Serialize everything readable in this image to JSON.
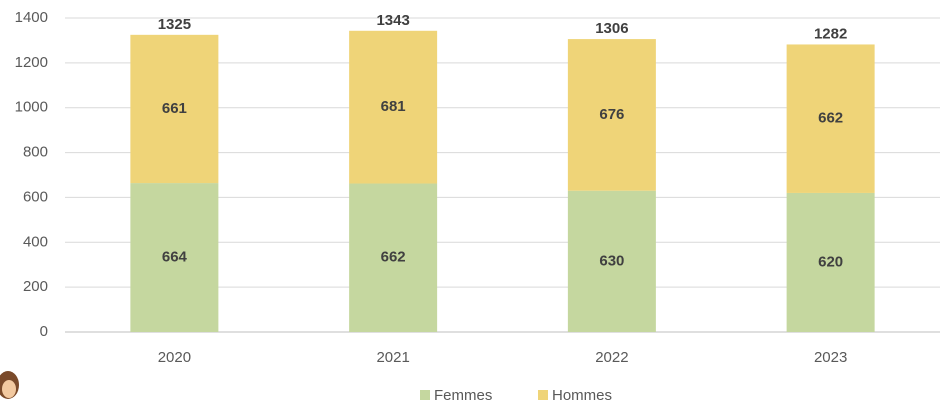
{
  "chart_data": {
    "type": "stacked_bar",
    "categories": [
      "2020",
      "2021",
      "2022",
      "2023"
    ],
    "series": [
      {
        "name": "Femmes",
        "color": "#c5d79f",
        "values": [
          664,
          662,
          630,
          620
        ]
      },
      {
        "name": "Hommes",
        "color": "#efd478",
        "values": [
          661,
          681,
          676,
          662
        ]
      }
    ],
    "totals": [
      1325,
      1343,
      1306,
      1282
    ],
    "ylim": [
      0,
      1400
    ],
    "yticks": [
      0,
      200,
      400,
      600,
      800,
      1000,
      1200,
      1400
    ],
    "grid": true,
    "legend": "bottom"
  }
}
